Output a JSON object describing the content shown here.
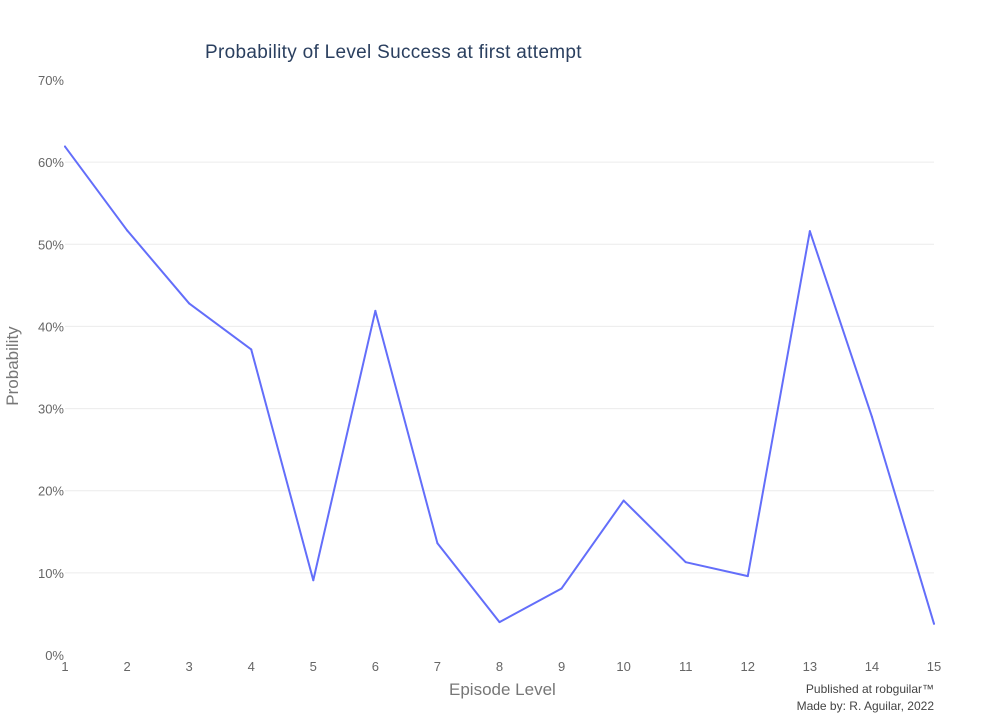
{
  "chart_data": {
    "type": "line",
    "title": "Probability of Level Success at first attempt",
    "xlabel": "Episode Level",
    "ylabel": "Probability",
    "x": [
      1,
      2,
      3,
      4,
      5,
      6,
      7,
      8,
      9,
      10,
      11,
      12,
      13,
      14,
      15
    ],
    "x_tick_labels": [
      "1",
      "2",
      "3",
      "4",
      "5",
      "6",
      "7",
      "8",
      "9",
      "10",
      "11",
      "12",
      "13",
      "14",
      "15"
    ],
    "series": [
      {
        "values": [
          0.619,
          0.517,
          0.428,
          0.372,
          0.091,
          0.419,
          0.136,
          0.04,
          0.081,
          0.188,
          0.113,
          0.096,
          0.516,
          0.29,
          0.038
        ]
      }
    ],
    "ylim": [
      0,
      0.7
    ],
    "y_ticks": [
      0,
      0.1,
      0.2,
      0.3,
      0.4,
      0.5,
      0.6,
      0.7
    ],
    "y_tick_labels": [
      "0%",
      "10%",
      "20%",
      "30%",
      "40%",
      "50%",
      "60%",
      "70%"
    ],
    "grid": true,
    "line_color": "#636efa"
  },
  "credits": {
    "published": "Published at robguilar™",
    "made_by": "Made by:  R. Aguilar, 2022"
  }
}
